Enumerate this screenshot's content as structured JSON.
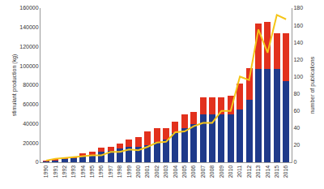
{
  "chart_data": {
    "type": "bar",
    "stacked": true,
    "grid": false,
    "x_label": "",
    "y_label": "stimulant production (kg)",
    "y2_label": "number of publications",
    "categories": [
      "1990",
      "1991",
      "1992",
      "1993",
      "1994",
      "1995",
      "1996",
      "1997",
      "1998",
      "1999",
      "2000",
      "2001",
      "2002",
      "2003",
      "2004",
      "2005",
      "2006",
      "2007",
      "2008",
      "2009",
      "2010",
      "2011",
      "2012",
      "2013",
      "2014",
      "2015",
      "2016"
    ],
    "series": [
      {
        "type": "bar",
        "color": "#1f3a8a",
        "values": [
          1000,
          2000,
          3000,
          4000,
          7000,
          8000,
          11000,
          12000,
          14000,
          16000,
          16000,
          18000,
          21000,
          24000,
          30000,
          35000,
          40000,
          50000,
          50000,
          50000,
          50000,
          55000,
          65000,
          97000,
          97000,
          97000,
          84000
        ]
      },
      {
        "type": "bar",
        "color": "#e2311d",
        "values": [
          500,
          1000,
          1000,
          1000,
          2000,
          3000,
          4000,
          4000,
          5000,
          8000,
          10000,
          14000,
          14000,
          11000,
          12000,
          15000,
          12000,
          17000,
          17000,
          17000,
          19000,
          27000,
          33000,
          47000,
          49000,
          37000,
          50000
        ]
      },
      {
        "type": "line",
        "axis": "y2",
        "color": "#f5c518",
        "values": [
          2,
          4,
          5,
          6,
          7,
          8,
          8,
          12,
          12,
          15,
          14,
          18,
          23,
          24,
          35,
          36,
          42,
          46,
          46,
          60,
          60,
          100,
          96,
          155,
          128,
          172,
          167
        ]
      }
    ],
    "ylim": [
      0,
      160000
    ],
    "yticks": [
      0,
      20000,
      40000,
      60000,
      80000,
      100000,
      120000,
      140000,
      160000
    ],
    "y2lim": [
      0,
      180
    ],
    "y2ticks": [
      0,
      20,
      40,
      60,
      80,
      100,
      120,
      140,
      160,
      180
    ]
  }
}
